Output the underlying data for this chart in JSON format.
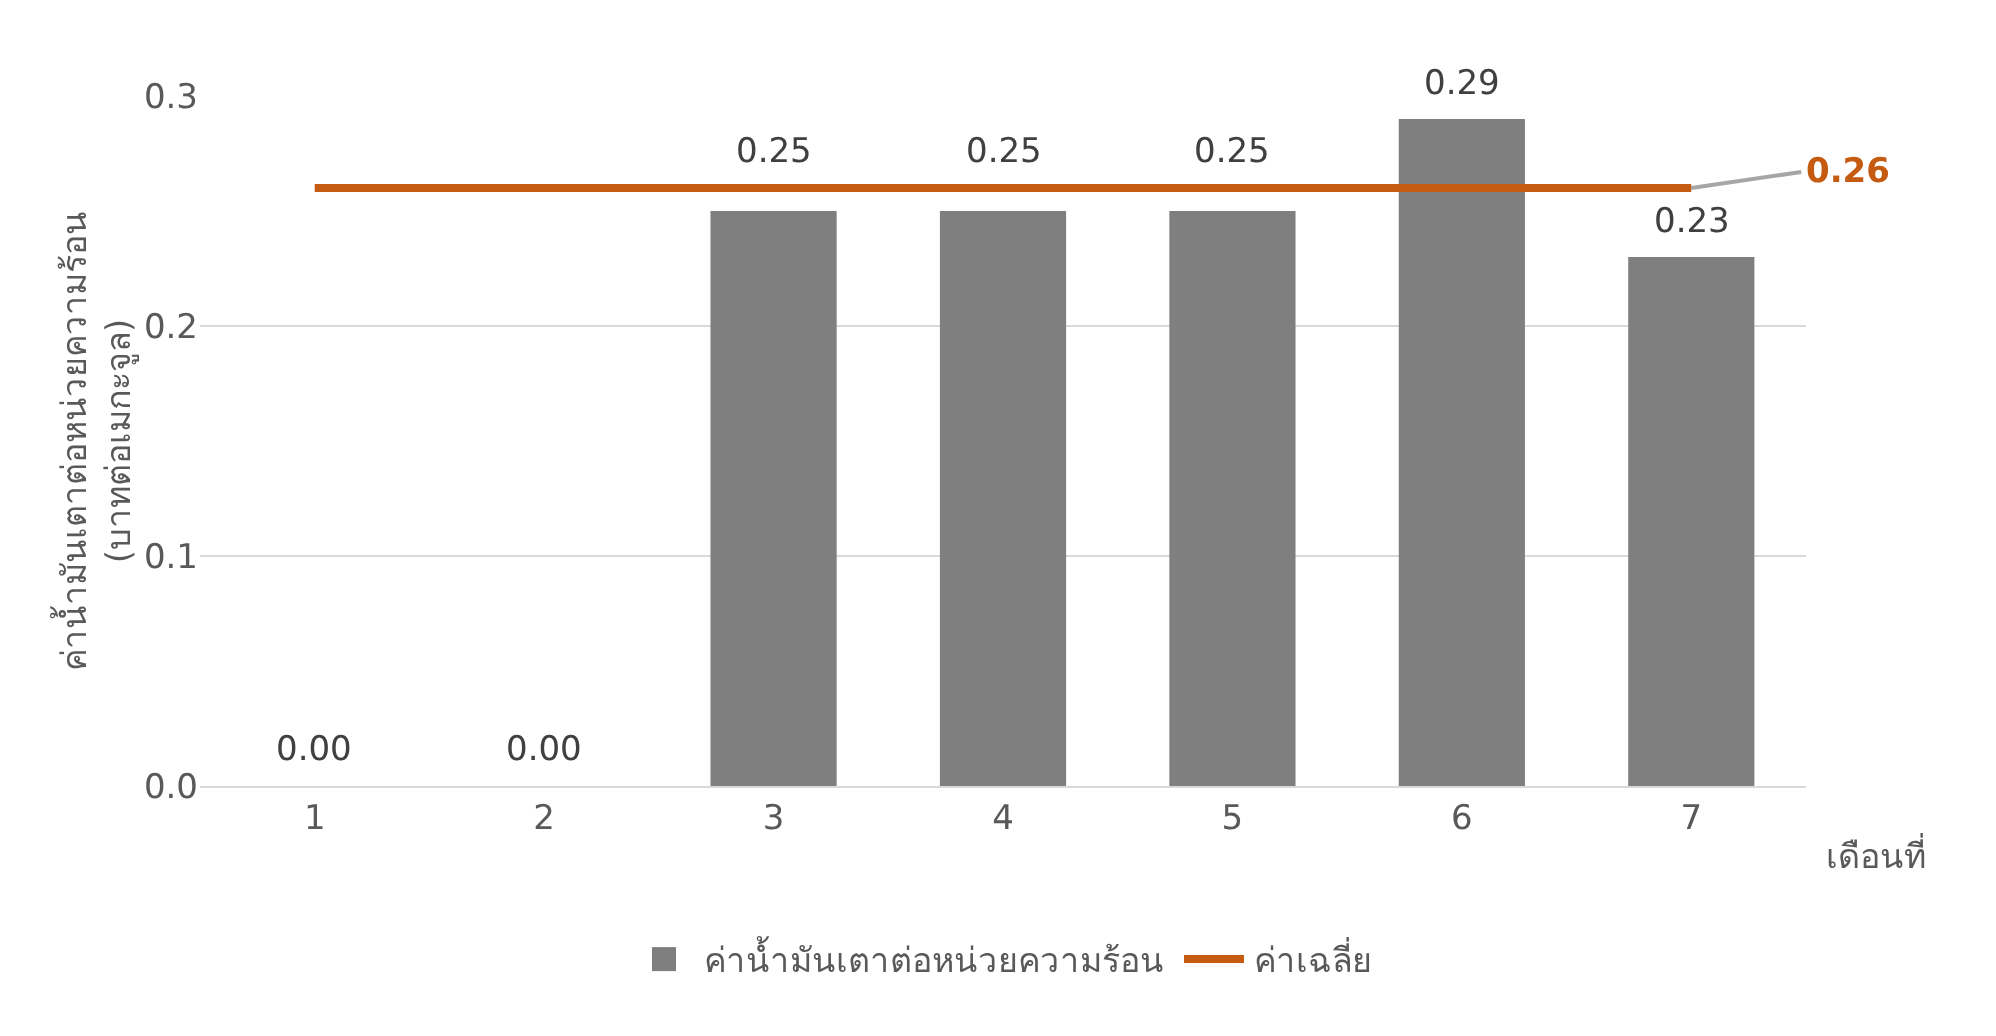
{
  "chart_data": {
    "type": "bar",
    "ylabel": "ค่าน้ำมันเตาต่อหน่วยความร้อน\n(บาทต่อเมกะจูล)",
    "xlabel": "เดือนที่",
    "categories": [
      "1",
      "2",
      "3",
      "4",
      "5",
      "6",
      "7"
    ],
    "series": [
      {
        "name": "ค่าน้ำมันเตาต่อหน่วยความร้อน",
        "color": "#7f7f7f",
        "values": [
          0,
          0,
          0.25,
          0.25,
          0.25,
          0.29,
          0.23
        ],
        "value_labels": [
          "0.00",
          "0.00",
          "0.25",
          "0.25",
          "0.25",
          "0.29",
          "0.23"
        ]
      },
      {
        "name": "ค่าเฉลี่ย",
        "type": "line",
        "color": "#c55a11",
        "values": [
          0.26,
          0.26,
          0.26,
          0.26,
          0.26,
          0.26,
          0.26
        ],
        "value_labels": [
          null,
          null,
          null,
          null,
          null,
          null,
          "0.26"
        ]
      }
    ],
    "ylim": [
      0,
      0.3
    ],
    "yticks": [
      {
        "value": 0,
        "label": "0.0"
      },
      {
        "value": 0.1,
        "label": "0.1"
      },
      {
        "value": 0.2,
        "label": "0.2"
      },
      {
        "value": 0.3,
        "label": "0.3"
      }
    ],
    "grid": "y",
    "legend": "bottom",
    "marker": "none"
  }
}
